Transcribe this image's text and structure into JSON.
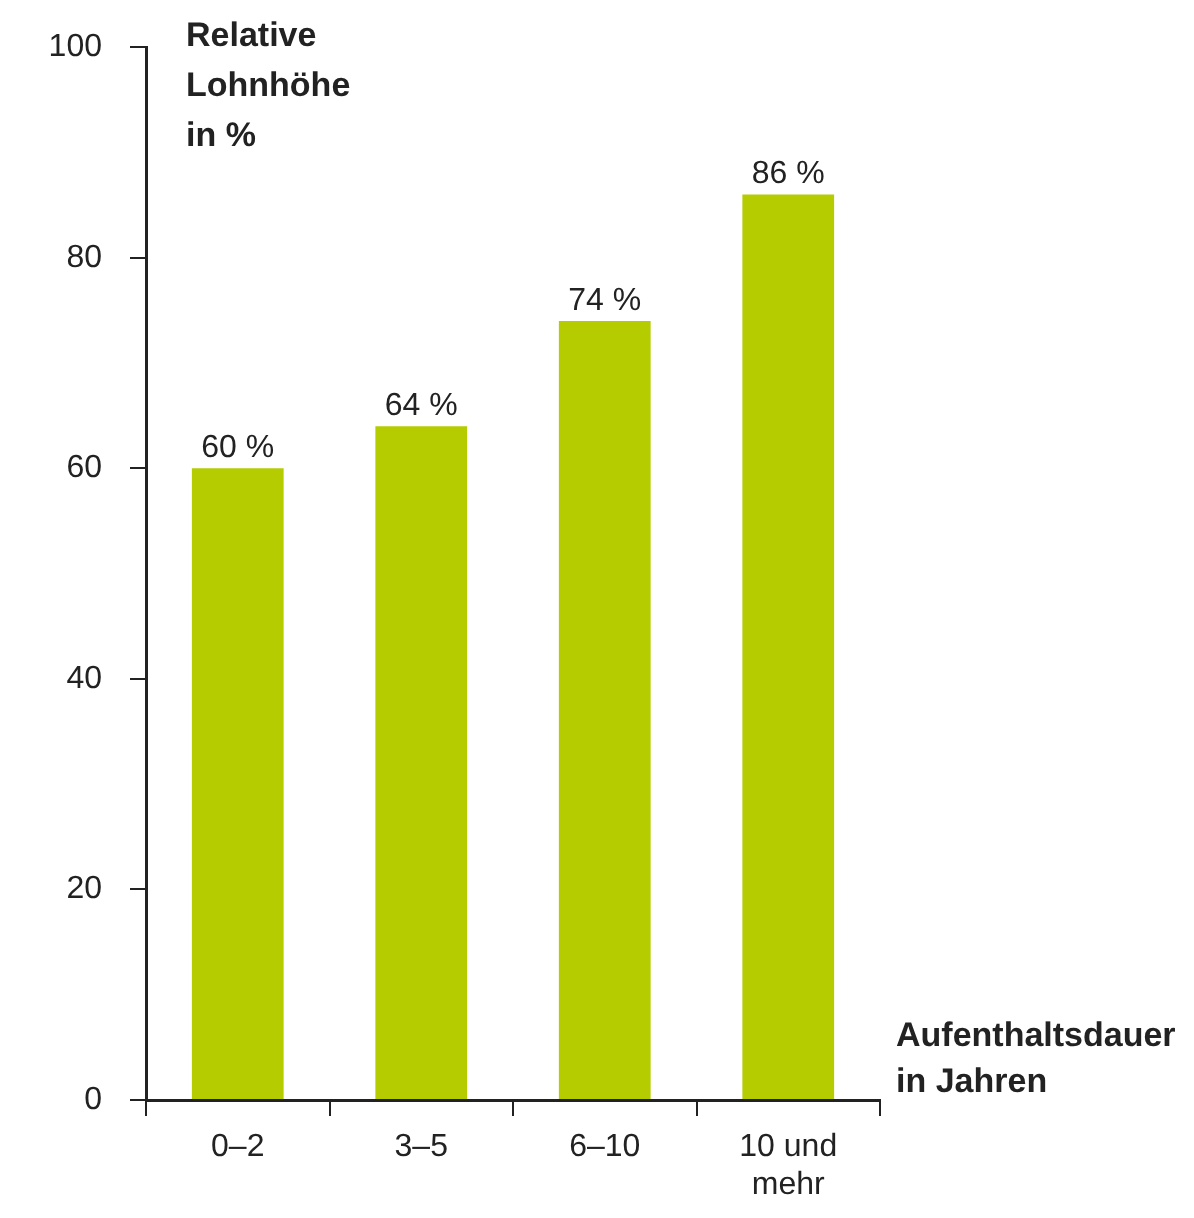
{
  "chart_data": {
    "type": "bar",
    "ylabel": "Relative Lohnhöhe in %",
    "xlabel": "Aufenthaltsdauer in Jahren",
    "categories": [
      "0–2",
      "3–5",
      "6–10",
      "10 und mehr"
    ],
    "values": [
      60,
      64,
      74,
      86
    ],
    "value_labels": [
      "60 %",
      "64 %",
      "74 %",
      "86 %"
    ],
    "color": "#b5cc00",
    "ylim": [
      0,
      100
    ],
    "yticks": [
      0,
      20,
      40,
      60,
      80,
      100
    ]
  }
}
